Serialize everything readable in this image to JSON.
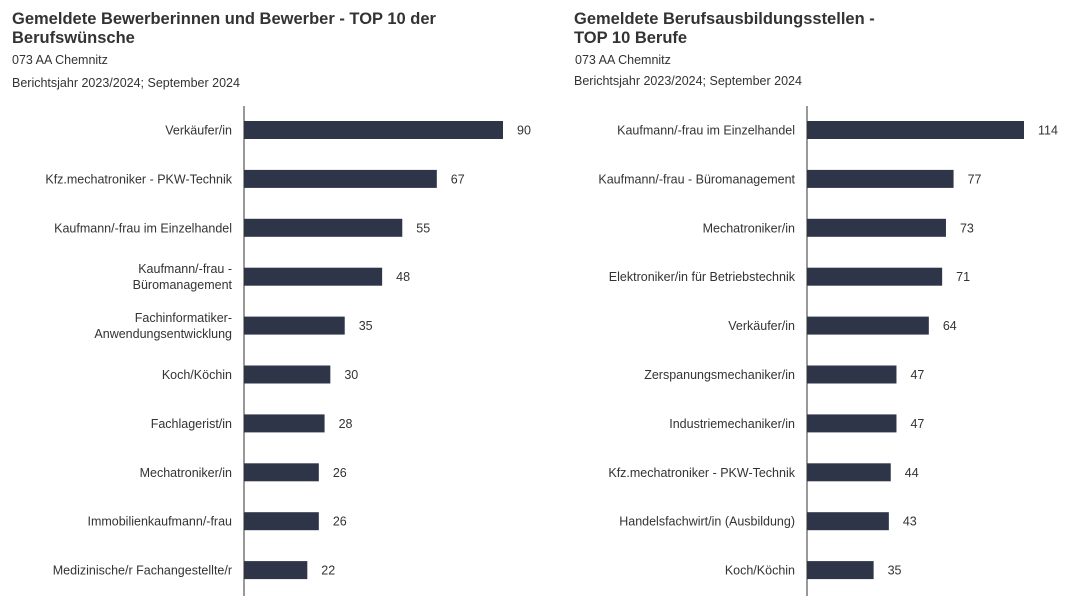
{
  "chart_data": [
    {
      "type": "bar",
      "orientation": "horizontal",
      "title": "Gemeldete Bewerberinnen und Bewerber - TOP 10 der\nBerufswünsche",
      "subtitle": [
        "073 AA Chemnitz",
        "Berichtsjahr 2023/2024; September 2024"
      ],
      "categories": [
        "Verkäufer/in",
        "Kfz.mechatroniker - PKW-Technik",
        "Kaufmann/-frau im Einzelhandel",
        "Kaufmann/-frau -\nBüromanagement",
        "Fachinformatiker-\nAnwendungsentwicklung",
        "Koch/Köchin",
        "Fachlagerist/in",
        "Mechatroniker/in",
        "Immobilienkaufmann/-frau",
        "Medizinische/r Fachangestellte/r"
      ],
      "values": [
        90,
        67,
        55,
        48,
        35,
        30,
        28,
        26,
        26,
        22
      ],
      "data_labels": true,
      "bar_color": "#2e3549",
      "grid": false
    },
    {
      "type": "bar",
      "orientation": "horizontal",
      "title": "Gemeldete Berufsausbildungsstellen  -\nTOP 10 Berufe",
      "subtitle": [
        "073 AA Chemnitz",
        "Berichtsjahr 2023/2024; September 2024"
      ],
      "categories": [
        "Kaufmann/-frau im Einzelhandel",
        "Kaufmann/-frau - Büromanagement",
        "Mechatroniker/in",
        "Elektroniker/in für Betriebstechnik",
        "Verkäufer/in",
        "Zerspanungsmechaniker/in",
        "Industriemechaniker/in",
        "Kfz.mechatroniker - PKW-Technik",
        "Handelsfachwirt/in (Ausbildung)",
        "Koch/Köchin"
      ],
      "values": [
        114,
        77,
        73,
        71,
        64,
        47,
        47,
        44,
        43,
        35
      ],
      "data_labels": true,
      "bar_color": "#2e3549",
      "grid": false
    }
  ]
}
